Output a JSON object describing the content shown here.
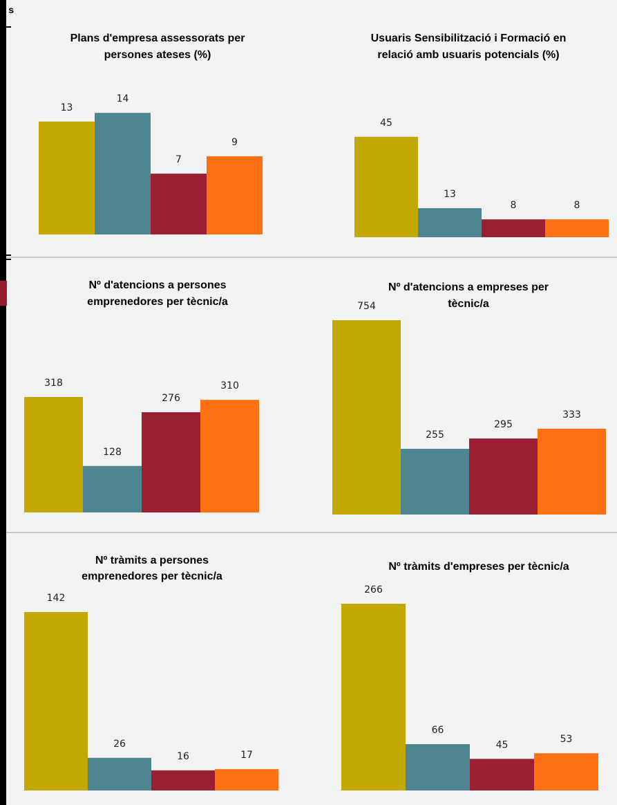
{
  "edge_label": "s",
  "colors": [
    "#c2a800",
    "#4d8690",
    "#9b1f32",
    "#ff7013"
  ],
  "chart_data": [
    {
      "type": "bar",
      "title_lines": [
        "Plans d'empresa assessorats per",
        "persones ateses (%)"
      ],
      "categories": [
        "",
        "",
        "",
        ""
      ],
      "values": [
        13,
        14,
        7,
        9
      ],
      "data_labels": [
        "13",
        "14",
        "7",
        "9"
      ],
      "ylim": [
        0,
        17.6
      ],
      "grid": false,
      "legend": "none"
    },
    {
      "type": "bar",
      "title_lines": [
        "Usuaris Sensibilització i Formació en",
        "relació amb usuaris potencials (%)"
      ],
      "categories": [
        "",
        "",
        "",
        ""
      ],
      "values": [
        45,
        13,
        8,
        8
      ],
      "data_labels": [
        "45",
        "13",
        "8",
        "8"
      ],
      "ylim": [
        0,
        53
      ],
      "grid": false,
      "legend": "none"
    },
    {
      "type": "bar",
      "title_lines": [
        "Nº d'atencions a persones",
        "emprenedores per tècnic/a"
      ],
      "categories": [
        "",
        "",
        "",
        ""
      ],
      "values": [
        318,
        128,
        276,
        310
      ],
      "data_labels": [
        "318",
        "128",
        "276",
        "310"
      ],
      "ylim": [
        0,
        398
      ],
      "grid": false,
      "legend": "none"
    },
    {
      "type": "bar",
      "title_lines": [
        "Nº d'atencions a empreses per",
        "tècnic/a"
      ],
      "categories": [
        "",
        "",
        "",
        ""
      ],
      "values": [
        754,
        255,
        295,
        333
      ],
      "data_labels": [
        "754",
        "255",
        "295",
        "333"
      ],
      "ylim": [
        0,
        754
      ],
      "grid": false,
      "legend": "none"
    },
    {
      "type": "bar",
      "title_lines": [
        "Nº tràmits a persones",
        "emprenedores per tècnic/a"
      ],
      "categories": [
        "",
        "",
        "",
        ""
      ],
      "values": [
        142,
        26,
        16,
        17
      ],
      "data_labels": [
        "142",
        "26",
        "16",
        "17"
      ],
      "ylim": [
        0,
        142
      ],
      "grid": false,
      "legend": "none"
    },
    {
      "type": "bar",
      "title_lines": [
        "Nº tràmits d'empreses per tècnic/a"
      ],
      "categories": [
        "",
        "",
        "",
        ""
      ],
      "values": [
        266,
        66,
        45,
        53
      ],
      "data_labels": [
        "266",
        "66",
        "45",
        "53"
      ],
      "ylim": [
        0,
        266
      ],
      "grid": false,
      "legend": "none"
    }
  ]
}
